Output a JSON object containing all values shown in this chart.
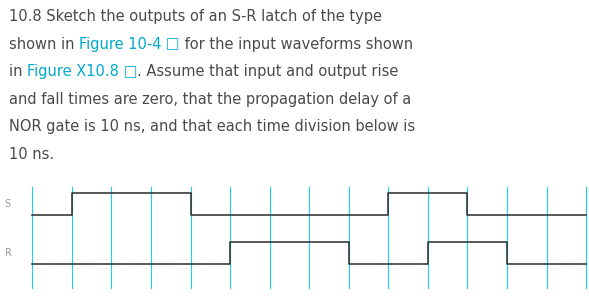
{
  "background_color": "#ffffff",
  "waveform_color": "#2a2a2a",
  "grid_color": "#00CCEE",
  "label_color": "#999999",
  "num_divisions": 14,
  "text_lines": [
    [
      {
        "text": "10.8 Sketch the outputs of an S-R latch of the type",
        "color": "#4a4a4a"
      }
    ],
    [
      {
        "text": "shown in ",
        "color": "#4a4a4a"
      },
      {
        "text": "Figure 10-4",
        "color": "#00AACC"
      },
      {
        "text": " □",
        "color": "#00AACC"
      },
      {
        "text": " for the input waveforms shown",
        "color": "#4a4a4a"
      }
    ],
    [
      {
        "text": "in ",
        "color": "#4a4a4a"
      },
      {
        "text": "Figure X10.8",
        "color": "#00AACC"
      },
      {
        "text": " □",
        "color": "#00AACC"
      },
      {
        "text": ". Assume that input and output rise",
        "color": "#4a4a4a"
      }
    ],
    [
      {
        "text": "and fall times are zero, that the propagation delay of a",
        "color": "#4a4a4a"
      }
    ],
    [
      {
        "text": "NOR gate is 10 ns, and that each time division below is",
        "color": "#4a4a4a"
      }
    ],
    [
      {
        "text": "10 ns.",
        "color": "#4a4a4a"
      }
    ]
  ],
  "fontsize": 10.5,
  "S_x": [
    0,
    1,
    1,
    4,
    4,
    9,
    9,
    11,
    11,
    14
  ],
  "S_y": [
    0,
    0,
    1,
    1,
    0,
    0,
    1,
    1,
    0,
    0
  ],
  "R_x": [
    0,
    5,
    5,
    8,
    8,
    10,
    10,
    12,
    12,
    14
  ],
  "R_y": [
    0,
    0,
    1,
    1,
    0,
    0,
    1,
    1,
    0,
    0
  ]
}
